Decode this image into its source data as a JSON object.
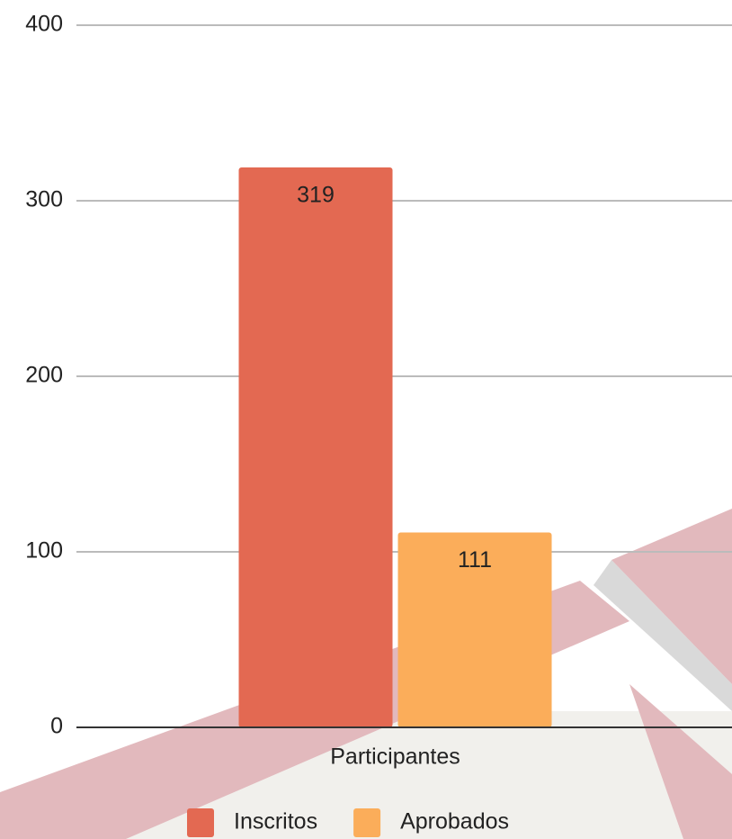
{
  "chart_data": {
    "type": "bar",
    "categories": [
      "Participantes"
    ],
    "series": [
      {
        "name": "Inscritos",
        "color": "#e36952",
        "values": [
          319
        ]
      },
      {
        "name": "Aprobados",
        "color": "#fbad5a",
        "values": [
          111
        ]
      }
    ],
    "ylim": [
      0,
      400
    ],
    "yticks": [
      0,
      100,
      200,
      300,
      400
    ],
    "grid": true,
    "legend": "bottom"
  }
}
